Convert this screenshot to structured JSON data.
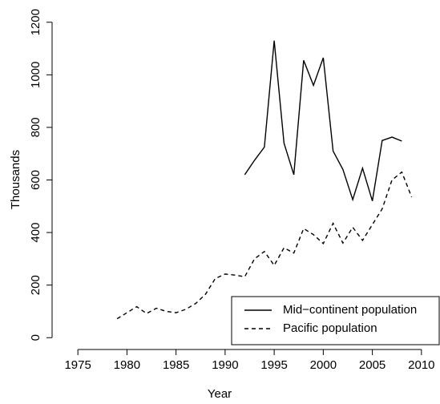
{
  "chart_data": {
    "type": "line",
    "x_label": "Year",
    "y_label": "Thousands",
    "x": [
      1979,
      1980,
      1981,
      1982,
      1983,
      1984,
      1985,
      1986,
      1987,
      1988,
      1989,
      1990,
      1991,
      1992,
      1993,
      1994,
      1995,
      1996,
      1997,
      1998,
      1999,
      2000,
      2001,
      2002,
      2003,
      2004,
      2005,
      2006,
      2007,
      2008,
      2009
    ],
    "series": [
      {
        "name": "Mid−continent population",
        "color": "#000000",
        "dash": false,
        "values": [
          null,
          null,
          null,
          null,
          null,
          null,
          null,
          null,
          null,
          null,
          null,
          null,
          null,
          620,
          675,
          725,
          1130,
          740,
          620,
          1055,
          960,
          1065,
          710,
          640,
          525,
          645,
          520,
          750,
          763,
          748,
          null
        ]
      },
      {
        "name": "Pacific population",
        "color": "#000000",
        "dash": true,
        "values": [
          72,
          95,
          118,
          92,
          112,
          100,
          95,
          108,
          130,
          165,
          225,
          242,
          238,
          232,
          300,
          328,
          275,
          342,
          322,
          415,
          392,
          358,
          435,
          360,
          420,
          370,
          430,
          490,
          600,
          630,
          535
        ]
      }
    ],
    "xlim": [
      1973.6,
      2011.4
    ],
    "xticks": [
      1975,
      1980,
      1985,
      1990,
      1995,
      2000,
      2005,
      2010
    ],
    "ylim": [
      -48,
      1248
    ],
    "yticks": [
      0,
      200,
      400,
      600,
      800,
      1000,
      1200
    ],
    "legend": "bottom-right"
  }
}
